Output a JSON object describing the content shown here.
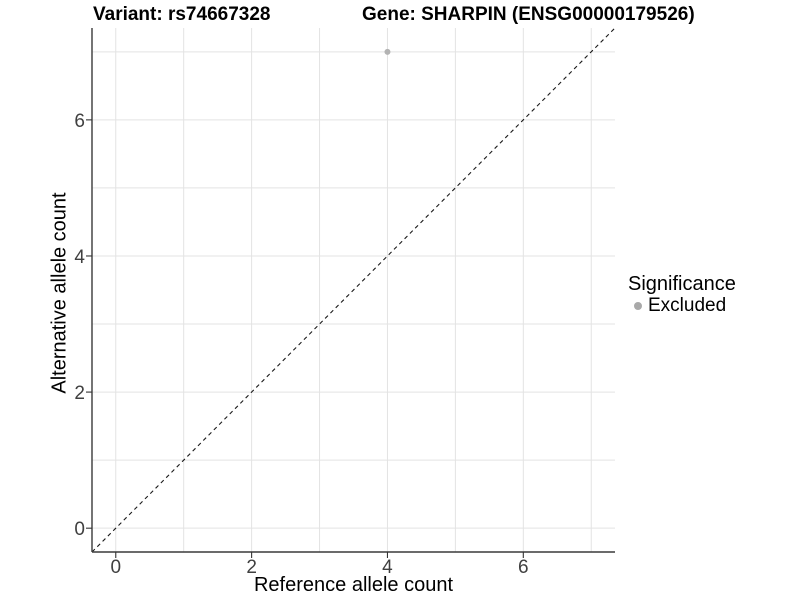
{
  "chart_data": {
    "type": "scatter",
    "titles": {
      "left": "Variant: rs74667328",
      "right": "Gene: SHARPIN (ENSG00000179526)"
    },
    "xlabel": "Reference allele count",
    "ylabel": "Alternative allele count",
    "xlim": [
      -0.35,
      7.35
    ],
    "ylim": [
      -0.35,
      7.35
    ],
    "x_ticks": [
      0,
      2,
      4,
      6
    ],
    "y_ticks": [
      0,
      2,
      4,
      6
    ],
    "grid_x": [
      0,
      1,
      2,
      3,
      4,
      5,
      6,
      7
    ],
    "grid_y": [
      0,
      1,
      2,
      3,
      4,
      5,
      6,
      7
    ],
    "grid": true,
    "series": [
      {
        "name": "Excluded",
        "color": "#b3b3b3",
        "points": [
          {
            "x": 4,
            "y": 7
          }
        ]
      }
    ],
    "abline": {
      "slope": 1,
      "intercept": 0,
      "style": "dashed",
      "color": "#1a1a1a"
    },
    "legend": {
      "position": "right",
      "title": "Significance",
      "entries": [
        {
          "label": "Excluded",
          "color": "#a9a9a9"
        }
      ]
    },
    "colors": {
      "grid": "#e3e3e3",
      "axis_line": "#3a3a3a",
      "tick_mark": "#333333",
      "tick_label": "#404040"
    }
  }
}
